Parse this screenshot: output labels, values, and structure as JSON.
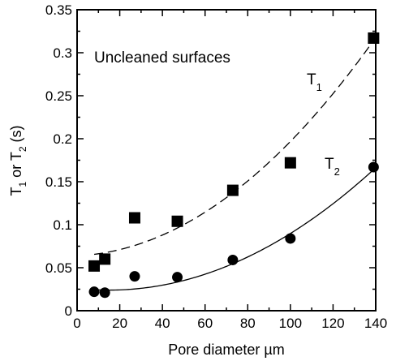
{
  "chart_data": {
    "type": "scatter",
    "xlabel": "Pore diameter µm",
    "ylabel": {
      "prefix": "T",
      "sub1": "1",
      "mid": " or T",
      "sub2": "2",
      "suffix": " (s)"
    },
    "xlim": [
      0,
      140
    ],
    "ylim": [
      0,
      0.35
    ],
    "xticks": [
      0,
      20,
      40,
      60,
      80,
      100,
      120,
      140
    ],
    "yticks": [
      0,
      0.05,
      0.1,
      0.15,
      0.2,
      0.25,
      0.3,
      0.35
    ],
    "xtick_labels": [
      "0",
      "20",
      "40",
      "60",
      "80",
      "100",
      "120",
      "140"
    ],
    "ytick_labels": [
      "0",
      "0.05",
      "0.1",
      "0.15",
      "0.2",
      "0.25",
      "0.3",
      "0.35"
    ],
    "annotation": "Uncleaned surfaces",
    "series": [
      {
        "marker": "square",
        "label": {
          "main": "T",
          "sub": "1"
        },
        "x": [
          8,
          13,
          27,
          47,
          73,
          100,
          139
        ],
        "y": [
          0.052,
          0.06,
          0.108,
          0.104,
          0.14,
          0.172,
          0.317
        ],
        "fit": {
          "style": "dashed",
          "a": 0.0638,
          "b": 0.00012,
          "c": 1.21e-05
        }
      },
      {
        "marker": "circle",
        "label": {
          "main": "T",
          "sub": "2"
        },
        "x": [
          8,
          13,
          27,
          47,
          73,
          100,
          139
        ],
        "y": [
          0.022,
          0.021,
          0.04,
          0.039,
          0.059,
          0.084,
          0.167
        ],
        "fit": {
          "style": "solid",
          "a": 0.026,
          "b": -0.000272,
          "c": 9.1e-06
        }
      }
    ],
    "colors": {
      "ink": "#000000",
      "background": "#ffffff"
    }
  }
}
